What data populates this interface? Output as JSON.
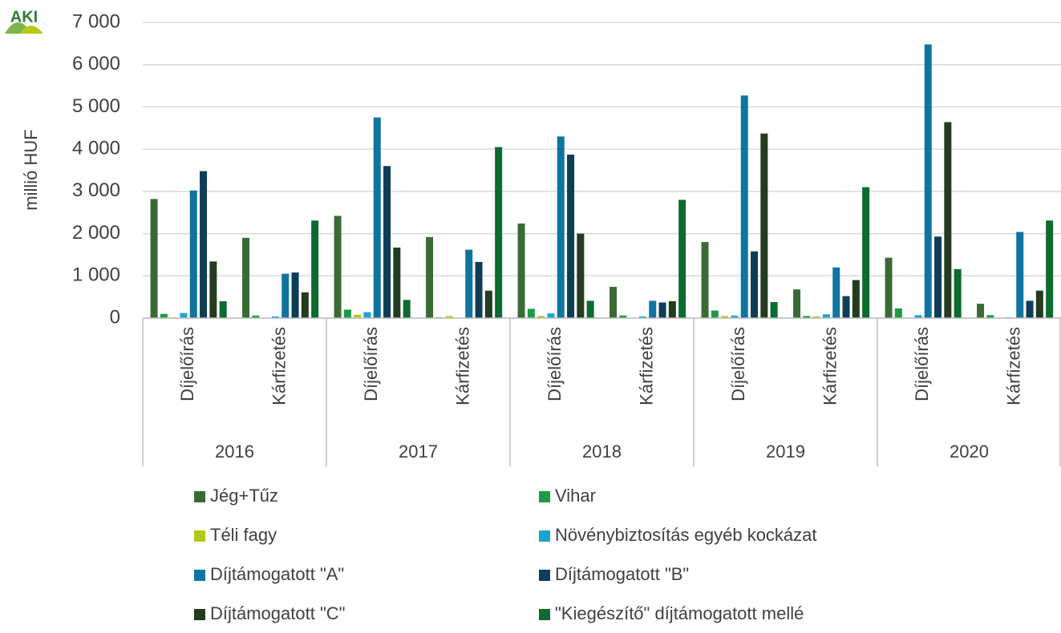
{
  "logo": "AKI",
  "chart_data": {
    "type": "bar",
    "y_label": "millió HUF",
    "groups": [
      "2016",
      "2017",
      "2018",
      "2019",
      "2020"
    ],
    "categories": [
      "Díjelőírás",
      "Kárfizetés",
      "Díjelőírás",
      "Kárfizetés",
      "Díjelőírás",
      "Kárfizetés",
      "Díjelőírás",
      "Kárfizetés",
      "Díjelőírás",
      "Kárfizetés"
    ],
    "ylim": [
      0,
      7000
    ],
    "yticks": [
      0,
      {
        "value": 1000,
        "label": "1 000"
      },
      {
        "value": 2000,
        "label": "2 000"
      },
      {
        "value": 3000,
        "label": "3 000"
      },
      {
        "value": 4000,
        "label": "4 000"
      },
      {
        "value": 5000,
        "label": "5 000"
      },
      {
        "value": 6000,
        "label": "6 000"
      },
      {
        "value": 7000,
        "label": "7 000"
      }
    ],
    "grid": true,
    "legend": "bottom",
    "series": [
      {
        "name": "Jég+Tűz",
        "color": "#3a6b35",
        "values": [
          2820,
          1900,
          2420,
          1920,
          2240,
          740,
          1800,
          680,
          1430,
          340
        ]
      },
      {
        "name": "Vihar",
        "color": "#1a9c46",
        "values": [
          100,
          60,
          200,
          20,
          220,
          60,
          180,
          50,
          230,
          70
        ]
      },
      {
        "name": "Téli fagy",
        "color": "#b5c91a",
        "values": [
          20,
          10,
          80,
          50,
          50,
          10,
          50,
          40,
          10,
          10
        ]
      },
      {
        "name": "Növénybiztosítás egyéb kockázat",
        "color": "#1ea3d0",
        "values": [
          120,
          40,
          140,
          0,
          110,
          40,
          60,
          90,
          70,
          20
        ]
      },
      {
        "name": "Díjtámogatott \"A\"",
        "color": "#0f74a0",
        "values": [
          3020,
          1050,
          4750,
          1620,
          4300,
          410,
          5270,
          1200,
          6480,
          2040
        ]
      },
      {
        "name": "Díjtámogatott \"B\"",
        "color": "#0e3d57",
        "values": [
          3480,
          1080,
          3600,
          1330,
          3870,
          370,
          1580,
          520,
          1930,
          410
        ]
      },
      {
        "name": "Díjtámogatott \"C\"",
        "color": "#233b1f",
        "values": [
          1340,
          610,
          1670,
          650,
          2000,
          400,
          4370,
          900,
          4640,
          650
        ]
      },
      {
        "name": "\"Kiegészítő\" díjtámogatott mellé",
        "color": "#0c6b2f",
        "values": [
          400,
          2310,
          430,
          4050,
          410,
          2800,
          380,
          3100,
          1160,
          2310
        ]
      }
    ]
  }
}
